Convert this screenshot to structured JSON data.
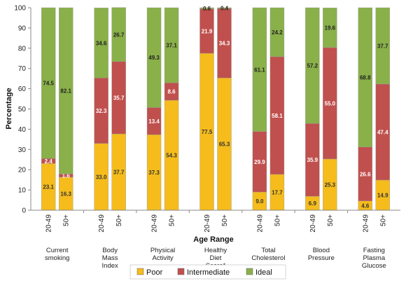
{
  "chart_data": {
    "type": "bar",
    "stacked": true,
    "xlabel": "Age Range",
    "ylabel": "Percentage",
    "ylim": [
      0,
      100
    ],
    "yticks": [
      0,
      10,
      20,
      30,
      40,
      50,
      60,
      70,
      80,
      90,
      100
    ],
    "grid": false,
    "legend_position": "bottom",
    "groups": [
      {
        "label": "Current smoking",
        "bars": [
          {
            "age": "20-49",
            "poor": 23.1,
            "intermediate": 2.4,
            "ideal": 74.5
          },
          {
            "age": "50+",
            "poor": 16.3,
            "intermediate": 1.6,
            "ideal": 82.1
          }
        ]
      },
      {
        "label": "Body Mass Index",
        "bars": [
          {
            "age": "20-49",
            "poor": 33.0,
            "intermediate": 32.3,
            "ideal": 34.6
          },
          {
            "age": "50+",
            "poor": 37.7,
            "intermediate": 35.7,
            "ideal": 26.7
          }
        ]
      },
      {
        "label": "Physical Activity",
        "bars": [
          {
            "age": "20-49",
            "poor": 37.3,
            "intermediate": 13.4,
            "ideal": 49.3
          },
          {
            "age": "50+",
            "poor": 54.3,
            "intermediate": 8.6,
            "ideal": 37.1
          }
        ]
      },
      {
        "label": "Healthy Diet Score*",
        "bars": [
          {
            "age": "20-49",
            "poor": 77.5,
            "intermediate": 21.9,
            "ideal": 0.6
          },
          {
            "age": "50+",
            "poor": 65.3,
            "intermediate": 34.3,
            "ideal": 0.4
          }
        ]
      },
      {
        "label": "Total Cholesterol",
        "bars": [
          {
            "age": "20-49",
            "poor": 9.0,
            "intermediate": 29.9,
            "ideal": 61.1
          },
          {
            "age": "50+",
            "poor": 17.7,
            "intermediate": 58.1,
            "ideal": 24.2
          }
        ]
      },
      {
        "label": "Blood Pressure",
        "bars": [
          {
            "age": "20-49",
            "poor": 6.9,
            "intermediate": 35.9,
            "ideal": 57.2
          },
          {
            "age": "50+",
            "poor": 25.3,
            "intermediate": 55.0,
            "ideal": 19.6
          }
        ]
      },
      {
        "label": "Fasting Plasma Glucose",
        "bars": [
          {
            "age": "20-49",
            "poor": 4.6,
            "intermediate": 26.6,
            "ideal": 68.8
          },
          {
            "age": "50+",
            "poor": 14.9,
            "intermediate": 47.4,
            "ideal": 37.7
          }
        ]
      }
    ],
    "series": [
      {
        "key": "poor",
        "name": "Poor",
        "color": "#F5BC1C",
        "label_color": "#333333"
      },
      {
        "key": "intermediate",
        "name": "Intermediate",
        "color": "#C0504D",
        "label_color": "#ffffff"
      },
      {
        "key": "ideal",
        "name": "Ideal",
        "color": "#8AB04A",
        "label_color": "#222222"
      }
    ]
  }
}
